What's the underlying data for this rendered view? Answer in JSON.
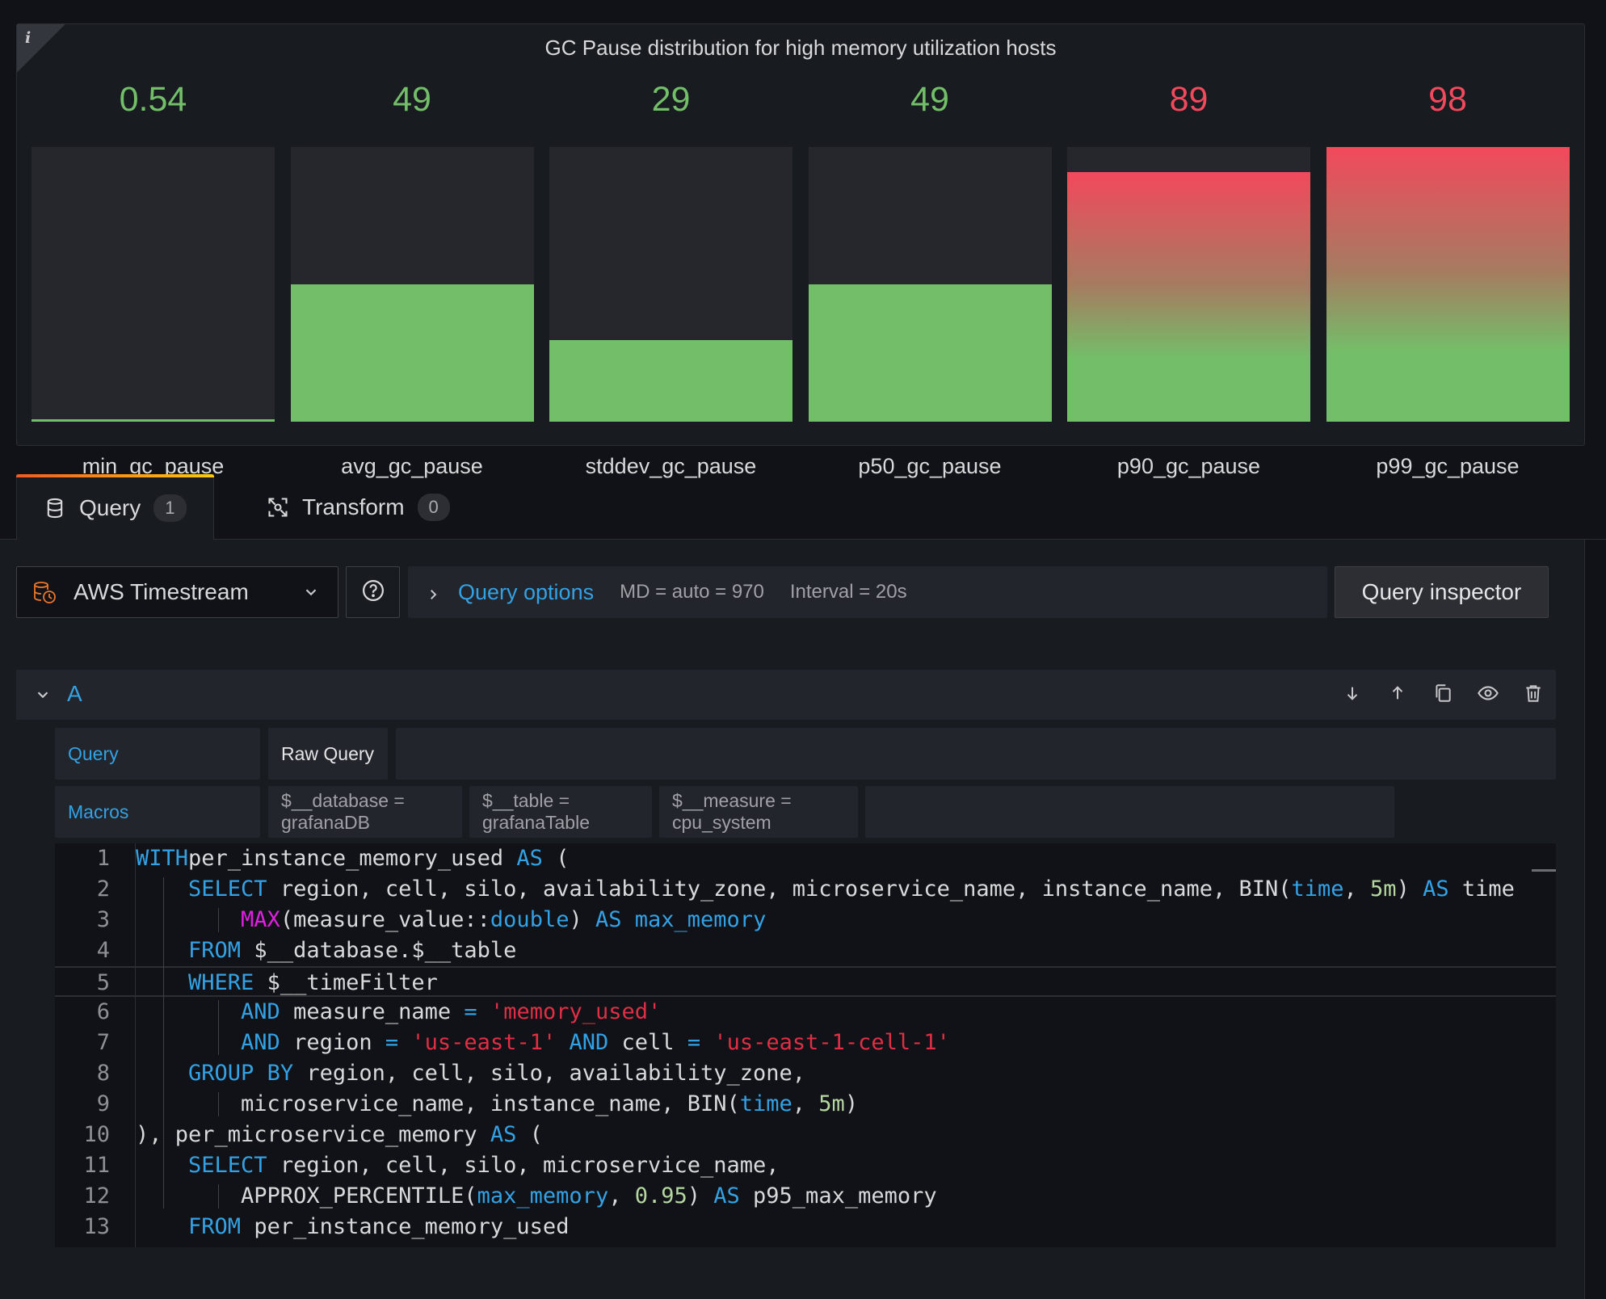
{
  "panel": {
    "info_glyph": "i",
    "title": "GC Pause distribution for high memory utilization hosts",
    "colors": {
      "ok": "#73bf69",
      "bad": "#f2495c",
      "track": "#25272c"
    },
    "gauges": [
      {
        "label": "min_gc_pause",
        "value": "0.54",
        "fraction": 0.0055,
        "state": "ok"
      },
      {
        "label": "avg_gc_pause",
        "value": "49",
        "fraction": 0.5,
        "state": "ok"
      },
      {
        "label": "stddev_gc_pause",
        "value": "29",
        "fraction": 0.296,
        "state": "ok"
      },
      {
        "label": "p50_gc_pause",
        "value": "49",
        "fraction": 0.5,
        "state": "ok"
      },
      {
        "label": "p90_gc_pause",
        "value": "89",
        "fraction": 0.908,
        "state": "bad"
      },
      {
        "label": "p99_gc_pause",
        "value": "98",
        "fraction": 1.0,
        "state": "bad"
      }
    ]
  },
  "tabs": [
    {
      "label": "Query",
      "count": "1",
      "icon": "database-icon",
      "active": true
    },
    {
      "label": "Transform",
      "count": "0",
      "icon": "transform-icon",
      "active": false
    }
  ],
  "datasource": {
    "name": "AWS Timestream",
    "icon": "timestream-icon"
  },
  "query_options": {
    "title": "Query options",
    "md": "MD = auto = 970",
    "interval": "Interval = 20s"
  },
  "inspector_label": "Query inspector",
  "query_row": {
    "ref_id": "A",
    "actions": [
      "move-down-icon",
      "move-up-icon",
      "duplicate-icon",
      "toggle-visibility-icon",
      "delete-icon"
    ]
  },
  "fields": {
    "query_label": "Query",
    "raw_query_label": "Raw Query",
    "macros_label": "Macros",
    "macros": [
      "$__database = grafanaDB",
      "$__table = grafanaTable",
      "$__measure = cpu_system"
    ]
  },
  "code": {
    "lines": [
      "1",
      "2",
      "3",
      "4",
      "5",
      "6",
      "7",
      "8",
      "9",
      "10",
      "11",
      "12",
      "13"
    ],
    "tokens": [
      [
        [
          "kw",
          "WITH"
        ],
        [
          "",
          "per_instance_memory_used "
        ],
        [
          "kw",
          "AS"
        ],
        [
          "",
          " ("
        ]
      ],
      [
        [
          "",
          "    "
        ],
        [
          "kw",
          "SELECT"
        ],
        [
          "",
          " region, cell, silo, availability_zone, microservice_name, instance_name, BIN("
        ],
        [
          "kw",
          "time"
        ],
        [
          "",
          ", "
        ],
        [
          "num",
          "5m"
        ],
        [
          "",
          ") "
        ],
        [
          "kw",
          "AS"
        ],
        [
          "",
          " time"
        ]
      ],
      [
        [
          "",
          "        "
        ],
        [
          "fn",
          "MAX"
        ],
        [
          "",
          "(measure_value::"
        ],
        [
          "kw",
          "double"
        ],
        [
          "",
          ") "
        ],
        [
          "kw",
          "AS"
        ],
        [
          "",
          " "
        ],
        [
          "kw",
          "max_memory"
        ]
      ],
      [
        [
          "",
          "    "
        ],
        [
          "kw",
          "FROM"
        ],
        [
          "",
          " $__database.$__table"
        ]
      ],
      [
        [
          "",
          "    "
        ],
        [
          "kw",
          "WHERE"
        ],
        [
          "",
          " $__timeFilter"
        ]
      ],
      [
        [
          "",
          "        "
        ],
        [
          "kw",
          "AND"
        ],
        [
          "",
          " measure_name "
        ],
        [
          "kw",
          "="
        ],
        [
          "",
          " "
        ],
        [
          "str",
          "'memory_used'"
        ]
      ],
      [
        [
          "",
          "        "
        ],
        [
          "kw",
          "AND"
        ],
        [
          "",
          " region "
        ],
        [
          "kw",
          "="
        ],
        [
          "",
          " "
        ],
        [
          "str",
          "'us-east-1'"
        ],
        [
          "",
          " "
        ],
        [
          "kw",
          "AND"
        ],
        [
          "",
          " cell "
        ],
        [
          "kw",
          "="
        ],
        [
          "",
          " "
        ],
        [
          "str",
          "'us-east-1-cell-1'"
        ]
      ],
      [
        [
          "",
          "    "
        ],
        [
          "kw",
          "GROUP BY"
        ],
        [
          "",
          " region, cell, silo, availability_zone,"
        ]
      ],
      [
        [
          "",
          "        microservice_name, instance_name, BIN("
        ],
        [
          "kw",
          "time"
        ],
        [
          "",
          ", "
        ],
        [
          "num",
          "5m"
        ],
        [
          "",
          ")"
        ]
      ],
      [
        [
          "",
          "), per_microservice_memory "
        ],
        [
          "kw",
          "AS"
        ],
        [
          "",
          " ("
        ]
      ],
      [
        [
          "",
          "    "
        ],
        [
          "kw",
          "SELECT"
        ],
        [
          "",
          " region, cell, silo, microservice_name,"
        ]
      ],
      [
        [
          "",
          "        APPROX_PERCENTILE("
        ],
        [
          "kw",
          "max_memory"
        ],
        [
          "",
          ", "
        ],
        [
          "num",
          "0.95"
        ],
        [
          "",
          ") "
        ],
        [
          "kw",
          "AS"
        ],
        [
          "",
          " p95_max_memory"
        ]
      ],
      [
        [
          "",
          "    "
        ],
        [
          "kw",
          "FROM"
        ],
        [
          "",
          " per_instance_memory_used"
        ]
      ]
    ]
  }
}
